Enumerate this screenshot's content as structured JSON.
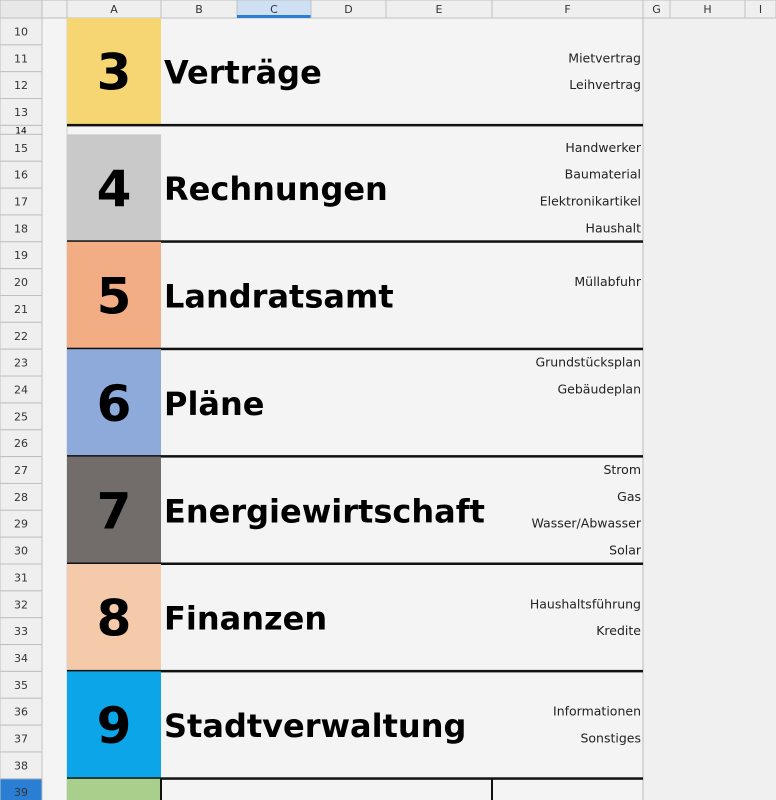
{
  "column_headers": [
    "A",
    "B",
    "C",
    "D",
    "E",
    "F",
    "G",
    "H",
    "I"
  ],
  "row_headers": [
    "10",
    "11",
    "12",
    "13",
    "14",
    "15",
    "16",
    "17",
    "18",
    "19",
    "20",
    "21",
    "22",
    "23",
    "24",
    "25",
    "26",
    "27",
    "28",
    "29",
    "30",
    "31",
    "32",
    "33",
    "34",
    "35",
    "36",
    "37",
    "38",
    "39"
  ],
  "selected_column": "C",
  "selected_row": "39",
  "sections": [
    {
      "number": "3",
      "title": "Verträge",
      "color": "#f6d672",
      "items": [
        null,
        "Mietvertrag",
        "Leihvertrag",
        null
      ]
    },
    {
      "number": "4",
      "title": "Rechnungen",
      "color": "#c9c9c9",
      "items": [
        "Handwerker",
        "Baumaterial",
        "Elektronikartikel",
        "Haushalt"
      ]
    },
    {
      "number": "5",
      "title": "Landratsamt",
      "color": "#f3ad84",
      "items": [
        null,
        "Müllabfuhr",
        null,
        null
      ]
    },
    {
      "number": "6",
      "title": "Pläne",
      "color": "#8eaadb",
      "items": [
        "Grundstücksplan",
        "Gebäudeplan",
        null,
        null
      ]
    },
    {
      "number": "7",
      "title": "Energiewirtschaft",
      "color": "#726d6a",
      "items": [
        "Strom",
        "Gas",
        "Wasser/Abwasser",
        "Solar"
      ]
    },
    {
      "number": "8",
      "title": "Finanzen",
      "color": "#f5caab",
      "items": [
        null,
        "Haushaltsführung",
        "Kredite",
        null
      ]
    },
    {
      "number": "9",
      "title": "Stadtverwaltung",
      "color": "#0ca6e8",
      "items": [
        null,
        "Informationen",
        "Sonstiges",
        null
      ]
    }
  ],
  "last_row_color": "#a8cf8c"
}
